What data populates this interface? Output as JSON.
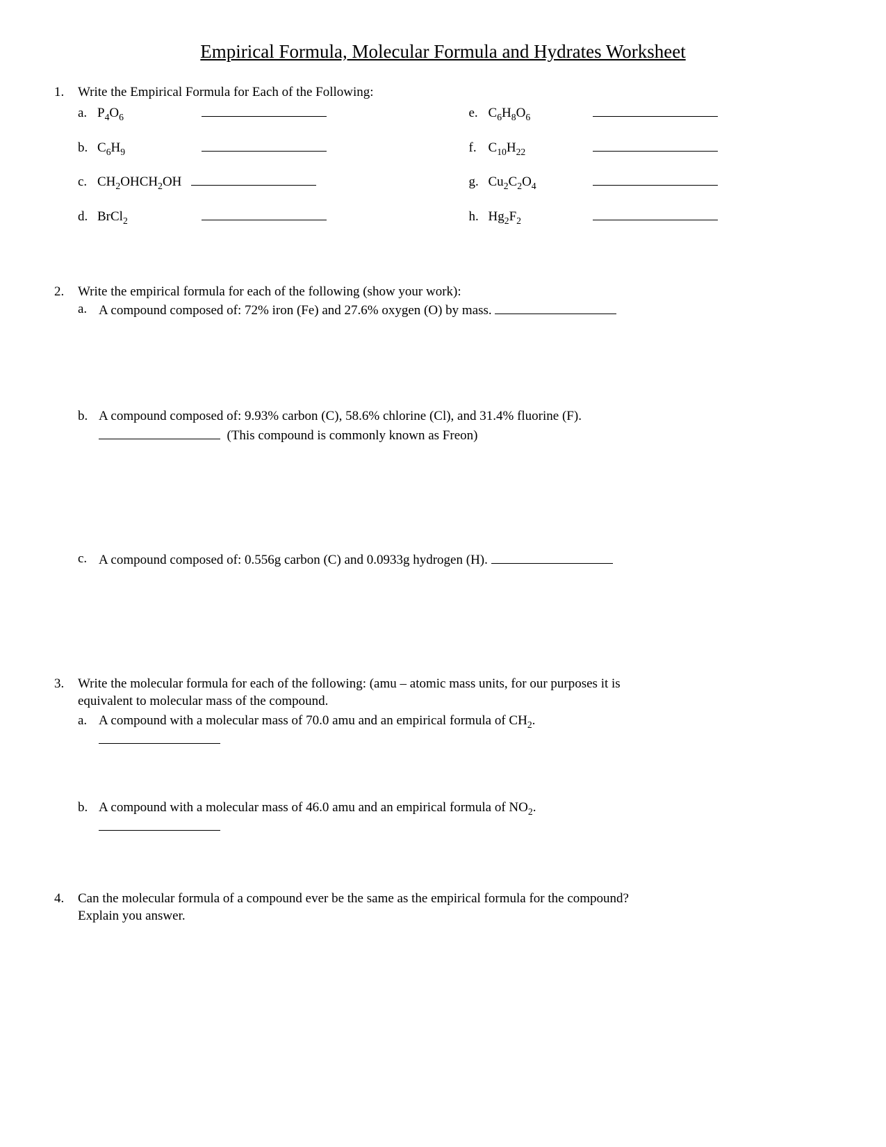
{
  "title": "Empirical Formula, Molecular Formula and Hydrates Worksheet",
  "q1": {
    "num": "1.",
    "prompt": "Write the Empirical Formula for Each of the Following:",
    "left": [
      {
        "letter": "a.",
        "formula_html": "P<sub>4</sub>O<sub>6</sub>"
      },
      {
        "letter": "b.",
        "formula_html": "C<sub>6</sub>H<sub>9</sub>"
      },
      {
        "letter": "c.",
        "formula_html": "CH<sub>2</sub>OHCH<sub>2</sub>OH"
      },
      {
        "letter": "d.",
        "formula_html": "BrCl<sub>2</sub>"
      }
    ],
    "right": [
      {
        "letter": "e.",
        "formula_html": "C<sub>6</sub>H<sub>8</sub>O<sub>6</sub>"
      },
      {
        "letter": "f.",
        "formula_html": "C<sub>10</sub>H<sub>22</sub>"
      },
      {
        "letter": "g.",
        "formula_html": "Cu<sub>2</sub>C<sub>2</sub>O<sub>4</sub>"
      },
      {
        "letter": "h.",
        "formula_html": "Hg<sub>2</sub>F<sub>2</sub>"
      }
    ]
  },
  "q2": {
    "num": "2.",
    "prompt": "Write the empirical formula for each of the following (show your work):",
    "items": [
      {
        "letter": "a.",
        "text": "A compound composed of: 72% iron (Fe) and 27.6% oxygen (O) by mass. ",
        "trailing_blank": true,
        "second_line": null
      },
      {
        "letter": "b.",
        "text": "A compound composed of: 9.93% carbon (C), 58.6% chlorine (Cl), and 31.4% fluorine (F).",
        "trailing_blank": false,
        "second_line": "(This compound is commonly known as Freon)",
        "second_line_leading_blank": true
      },
      {
        "letter": "c.",
        "text": "A compound composed of: 0.556g carbon (C) and 0.0933g hydrogen (H). ",
        "trailing_blank": true,
        "second_line": null
      }
    ]
  },
  "q3": {
    "num": "3.",
    "prompt_l1": "Write the molecular formula for each of the following: (amu – atomic mass units, for our purposes it is",
    "prompt_l2": "equivalent to molecular mass of the compound.",
    "items": [
      {
        "letter": "a.",
        "text_html": "A compound with a molecular mass of 70.0 amu and an empirical formula of CH<sub>2</sub>."
      },
      {
        "letter": "b.",
        "text_html": "A compound with a molecular mass of 46.0 amu and an empirical formula of NO<sub>2</sub>."
      }
    ]
  },
  "q4": {
    "num": "4.",
    "text_l1": "Can the molecular formula of a compound ever be the same as the empirical formula for the compound?",
    "text_l2": "Explain you answer."
  }
}
